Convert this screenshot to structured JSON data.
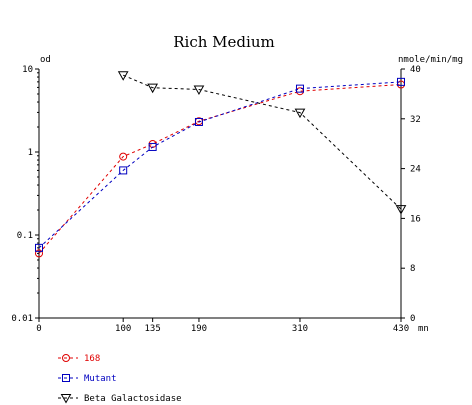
{
  "chart_data": {
    "type": "line",
    "title": "Rich Medium",
    "ylabel_left": "od",
    "ylabel_right": "nmole/min/mg",
    "xlabel": "mn",
    "x_ticks": [
      0,
      100,
      135,
      190,
      310,
      430
    ],
    "xlim": [
      0,
      430
    ],
    "left_axis": {
      "scale": "log",
      "ylim": [
        0.01,
        10
      ],
      "tick_labels": [
        "10",
        "1",
        "0.1",
        "0.01"
      ],
      "tick_values": [
        10,
        1,
        0.1,
        0.01
      ]
    },
    "right_axis": {
      "scale": "linear",
      "ylim": [
        0,
        40
      ],
      "tick_labels": [
        "40",
        "32",
        "24",
        "16",
        "8",
        "0"
      ],
      "tick_values": [
        40,
        32,
        24,
        16,
        8,
        0
      ]
    },
    "series": [
      {
        "name": "168",
        "axis": "left",
        "color": "#e00000",
        "marker": "circle",
        "x": [
          0,
          100,
          135,
          190,
          310,
          430
        ],
        "y": [
          0.06,
          0.88,
          1.25,
          2.35,
          5.4,
          6.5
        ]
      },
      {
        "name": "Mutant",
        "axis": "left",
        "color": "#0000c0",
        "marker": "square",
        "x": [
          0,
          100,
          135,
          190,
          310,
          430
        ],
        "y": [
          0.07,
          0.6,
          1.15,
          2.3,
          5.8,
          7.0
        ]
      },
      {
        "name": "Beta Galactosidase",
        "axis": "right",
        "color": "#000000",
        "marker": "triangle-down",
        "x": [
          100,
          135,
          190,
          310,
          430
        ],
        "y": [
          39,
          37,
          36.7,
          33,
          17.5
        ]
      }
    ],
    "legend_position": "bottom-left",
    "grid": false
  }
}
